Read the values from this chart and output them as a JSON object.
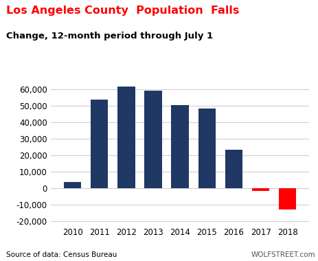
{
  "years": [
    2010,
    2011,
    2012,
    2013,
    2014,
    2015,
    2016,
    2017,
    2018
  ],
  "values": [
    4000,
    54000,
    62000,
    59500,
    50500,
    48500,
    23500,
    -1500,
    -13000
  ],
  "bar_colors": [
    "#1f3864",
    "#1f3864",
    "#1f3864",
    "#1f3864",
    "#1f3864",
    "#1f3864",
    "#1f3864",
    "#ff0000",
    "#ff0000"
  ],
  "title_line1": "Los Angeles County  Population  Falls",
  "title_line2": "Change, 12-month period through July 1",
  "ylim": [
    -22000,
    70000
  ],
  "yticks": [
    -20000,
    -10000,
    0,
    10000,
    20000,
    30000,
    40000,
    50000,
    60000
  ],
  "source_text": "Source of data: Census Bureau",
  "watermark_text": "WOLFSTREET.com",
  "title_color1": "#ff0000",
  "title_color2": "#000000",
  "background_color": "#ffffff",
  "grid_color": "#d0d0d0",
  "bar_width": 0.65
}
